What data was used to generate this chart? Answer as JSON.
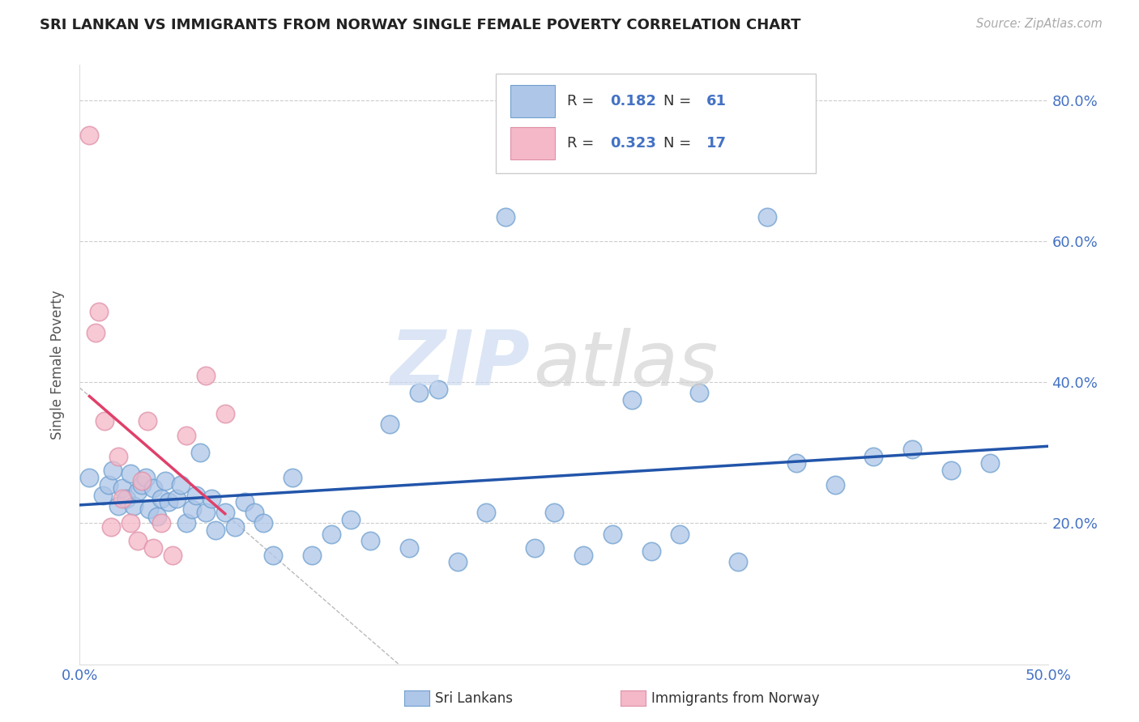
{
  "title": "SRI LANKAN VS IMMIGRANTS FROM NORWAY SINGLE FEMALE POVERTY CORRELATION CHART",
  "source_text": "Source: ZipAtlas.com",
  "ylabel": "Single Female Poverty",
  "xlim": [
    0.0,
    0.5
  ],
  "ylim": [
    0.0,
    0.85
  ],
  "xtick_positions": [
    0.0,
    0.1,
    0.2,
    0.3,
    0.4,
    0.5
  ],
  "xticklabels": [
    "0.0%",
    "",
    "",
    "",
    "",
    "50.0%"
  ],
  "ytick_positions": [
    0.0,
    0.2,
    0.4,
    0.6,
    0.8
  ],
  "yticklabels": [
    "",
    "20.0%",
    "40.0%",
    "60.0%",
    "80.0%"
  ],
  "sri_lankan_color": "#aec6e8",
  "norway_color": "#f4b8c8",
  "sri_lankan_border": "#6fa0d0",
  "norway_border": "#e090a8",
  "sri_lankan_line_color": "#2255aa",
  "norway_line_color": "#e0406a",
  "norway_line_dashed_color": "#cccccc",
  "r_sri": 0.182,
  "n_sri": 61,
  "r_nor": 0.323,
  "n_nor": 17,
  "legend_sri_label": "Sri Lankans",
  "legend_nor_label": "Immigrants from Norway",
  "sri_x": [
    0.005,
    0.012,
    0.015,
    0.017,
    0.02,
    0.022,
    0.024,
    0.026,
    0.028,
    0.03,
    0.032,
    0.034,
    0.036,
    0.038,
    0.04,
    0.042,
    0.044,
    0.046,
    0.05,
    0.052,
    0.055,
    0.058,
    0.06,
    0.062,
    0.065,
    0.068,
    0.07,
    0.075,
    0.08,
    0.085,
    0.09,
    0.095,
    0.1,
    0.11,
    0.12,
    0.13,
    0.14,
    0.15,
    0.16,
    0.17,
    0.175,
    0.185,
    0.195,
    0.21,
    0.22,
    0.235,
    0.245,
    0.26,
    0.275,
    0.285,
    0.295,
    0.31,
    0.32,
    0.34,
    0.355,
    0.37,
    0.39,
    0.41,
    0.43,
    0.45,
    0.47
  ],
  "sri_y": [
    0.265,
    0.24,
    0.255,
    0.275,
    0.225,
    0.25,
    0.235,
    0.27,
    0.225,
    0.245,
    0.255,
    0.265,
    0.22,
    0.25,
    0.21,
    0.235,
    0.26,
    0.23,
    0.235,
    0.255,
    0.2,
    0.22,
    0.24,
    0.3,
    0.215,
    0.235,
    0.19,
    0.215,
    0.195,
    0.23,
    0.215,
    0.2,
    0.155,
    0.265,
    0.155,
    0.185,
    0.205,
    0.175,
    0.34,
    0.165,
    0.385,
    0.39,
    0.145,
    0.215,
    0.635,
    0.165,
    0.215,
    0.155,
    0.185,
    0.375,
    0.16,
    0.185,
    0.385,
    0.145,
    0.635,
    0.285,
    0.255,
    0.295,
    0.305,
    0.275,
    0.285
  ],
  "nor_x": [
    0.005,
    0.008,
    0.01,
    0.013,
    0.016,
    0.02,
    0.022,
    0.026,
    0.03,
    0.032,
    0.035,
    0.038,
    0.042,
    0.048,
    0.055,
    0.065,
    0.075
  ],
  "nor_y": [
    0.75,
    0.47,
    0.5,
    0.345,
    0.195,
    0.295,
    0.235,
    0.2,
    0.175,
    0.26,
    0.345,
    0.165,
    0.2,
    0.155,
    0.325,
    0.41,
    0.355
  ],
  "nor_line_xmin": 0.005,
  "nor_line_xmax": 0.075,
  "norway_extended_line_xmin": 0.0,
  "norway_extended_line_xmax": 0.3
}
